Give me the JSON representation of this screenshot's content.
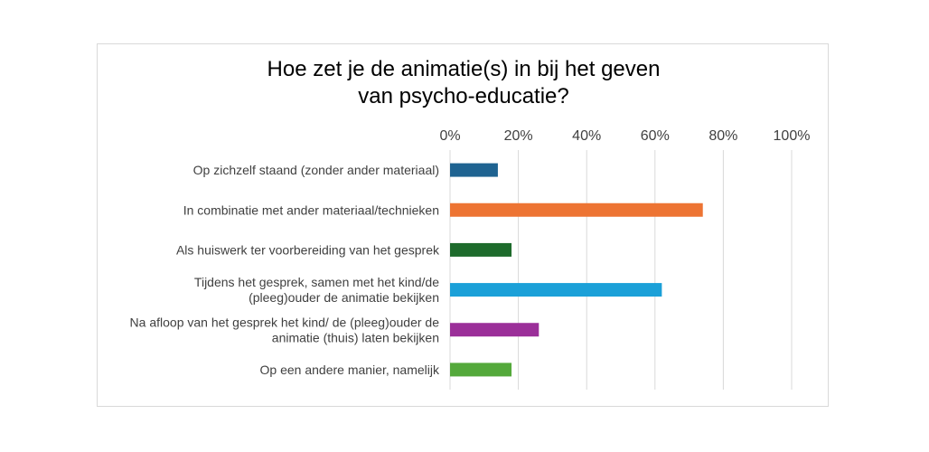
{
  "chart_data": {
    "type": "bar",
    "orientation": "horizontal",
    "title_lines": [
      "Hoe zet je de animatie(s) in bij het geven",
      "van psycho-educatie?"
    ],
    "categories": [
      [
        "Op zichzelf staand (zonder ander materiaal)"
      ],
      [
        "In combinatie met ander materiaal/technieken"
      ],
      [
        "Als huiswerk ter voorbereiding van het gesprek"
      ],
      [
        "Tijdens het gesprek, samen met het kind/de",
        "(pleeg)ouder de animatie bekijken"
      ],
      [
        "Na afloop van het gesprek het kind/ de (pleeg)ouder de",
        "animatie (thuis) laten bekijken"
      ],
      [
        "Op een andere manier, namelijk"
      ]
    ],
    "values": [
      14,
      74,
      18,
      62,
      26,
      18
    ],
    "colors": [
      "#1f6391",
      "#ed7433",
      "#1e6b2c",
      "#1ba0d8",
      "#9b2f99",
      "#54a93b"
    ],
    "xlim": [
      0,
      100
    ],
    "x_ticks": [
      "0%",
      "20%",
      "40%",
      "60%",
      "80%",
      "100%"
    ],
    "x_tick_values": [
      0,
      20,
      40,
      60,
      80,
      100
    ],
    "xlabel": "",
    "ylabel": "",
    "grid": true,
    "axis_position": "top",
    "legend": "none"
  }
}
